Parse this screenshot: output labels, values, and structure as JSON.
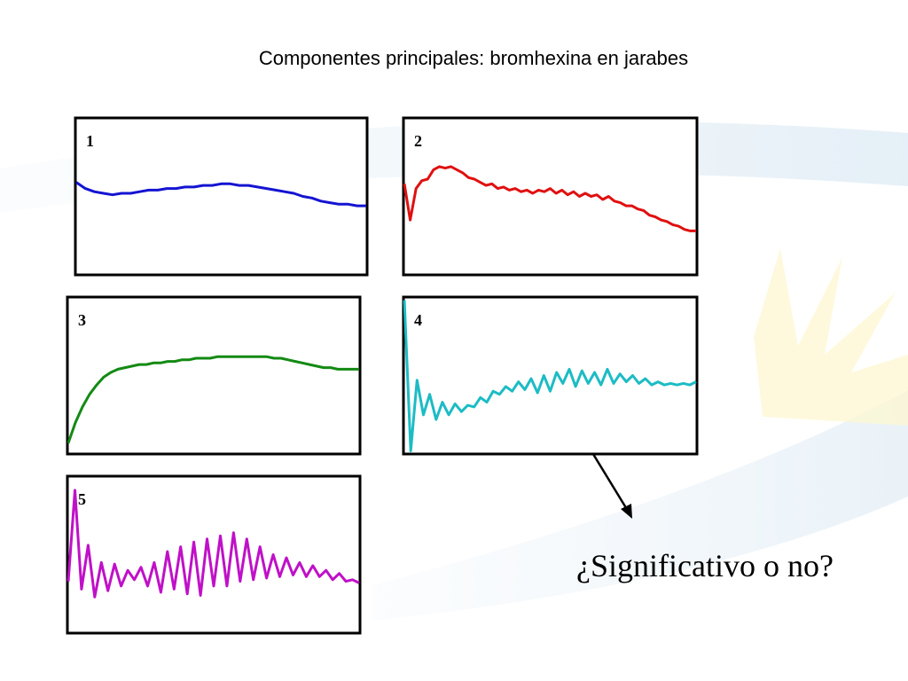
{
  "title": "Componentes principales: bromhexina en jarabes",
  "annotation": "¿Significativo o no?",
  "chart_data": [
    {
      "type": "line",
      "title": "1",
      "color": "#1414d2",
      "ylim": [
        0,
        100
      ],
      "values": [
        59,
        55,
        53,
        52,
        51,
        52,
        52,
        53,
        54,
        54,
        55,
        55,
        56,
        56,
        57,
        57,
        58,
        58,
        57,
        57,
        56,
        55,
        54,
        53,
        52,
        50,
        49,
        47,
        46,
        45,
        45,
        44,
        44
      ]
    },
    {
      "type": "line",
      "title": "2",
      "color": "#e01010",
      "ylim": [
        0,
        100
      ],
      "values": [
        58,
        35,
        55,
        60,
        61,
        67,
        69,
        68,
        69,
        67,
        65,
        62,
        61,
        59,
        57,
        58,
        55,
        56,
        54,
        55,
        53,
        54,
        52,
        54,
        53,
        55,
        52,
        54,
        51,
        53,
        50,
        52,
        50,
        51,
        48,
        50,
        47,
        46,
        44,
        44,
        42,
        41,
        38,
        37,
        35,
        34,
        32,
        31,
        29,
        28,
        28
      ]
    },
    {
      "type": "line",
      "title": "3",
      "color": "#138a13",
      "ylim": [
        0,
        100
      ],
      "values": [
        7,
        20,
        30,
        38,
        44,
        49,
        52,
        54,
        55,
        56,
        57,
        57,
        58,
        58,
        59,
        59,
        60,
        60,
        61,
        61,
        61,
        62,
        62,
        62,
        62,
        62,
        62,
        62,
        62,
        61,
        61,
        60,
        59,
        58,
        57,
        56,
        55,
        55,
        54,
        54,
        54,
        54
      ]
    },
    {
      "type": "line",
      "title": "4",
      "color": "#1cbcc4",
      "ylim": [
        0,
        100
      ],
      "values": [
        98,
        2,
        47,
        25,
        38,
        22,
        33,
        25,
        32,
        27,
        31,
        30,
        36,
        33,
        40,
        38,
        43,
        40,
        46,
        41,
        48,
        39,
        50,
        40,
        52,
        45,
        54,
        43,
        53,
        45,
        52,
        44,
        54,
        45,
        51,
        46,
        50,
        45,
        48,
        44,
        46,
        44,
        45,
        44,
        45,
        44,
        46
      ]
    },
    {
      "type": "line",
      "title": "5",
      "color": "#c010c8",
      "ylim": [
        0,
        100
      ],
      "values": [
        33,
        91,
        28,
        56,
        23,
        45,
        27,
        44,
        30,
        40,
        34,
        42,
        30,
        45,
        26,
        52,
        28,
        55,
        25,
        58,
        24,
        60,
        30,
        62,
        30,
        64,
        33,
        60,
        34,
        55,
        35,
        50,
        36,
        48,
        37,
        45,
        36,
        43,
        36,
        40,
        34,
        38,
        33,
        34,
        32
      ]
    }
  ]
}
